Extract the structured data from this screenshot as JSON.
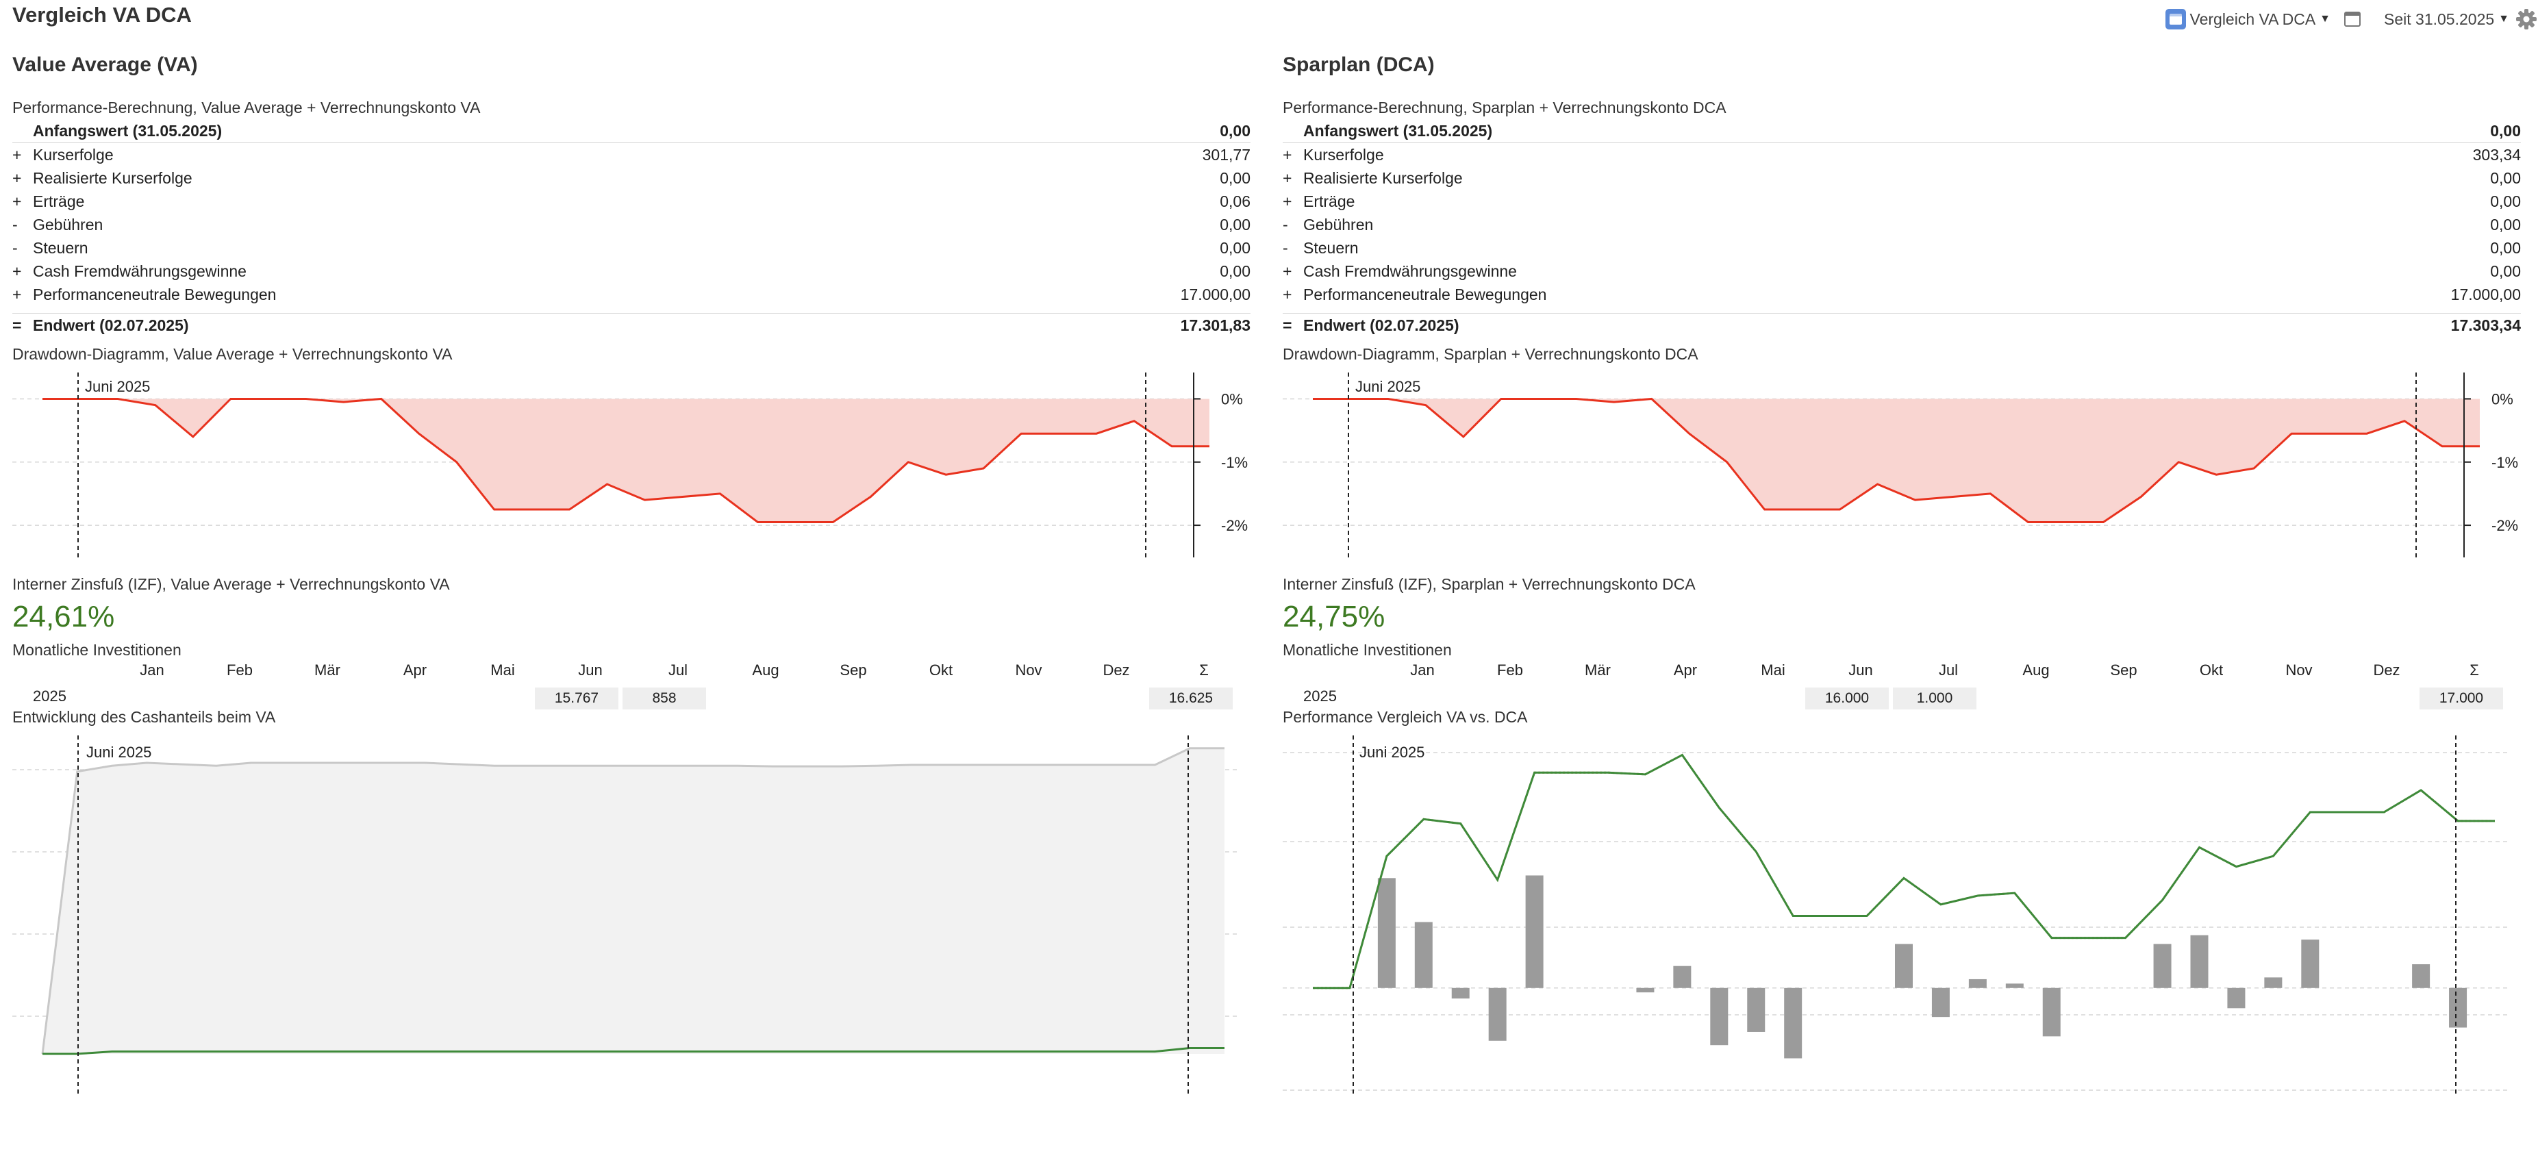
{
  "page_title": "Vergleich VA DCA",
  "toolbar": {
    "view_label": "Vergleich VA DCA",
    "period_label": "Seit 31.05.2025",
    "icons": [
      "calendar-icon",
      "window-icon",
      "gear-icon"
    ]
  },
  "colors": {
    "drawdown_line": "#e8321e",
    "drawdown_fill": "#f9d5d1",
    "irr_green": "#3d7a22",
    "perf_line": "#3e8a3a",
    "bar_gray": "#9b9b9b",
    "cash_gray": "#c8c8c8"
  },
  "left": {
    "title": "Value Average (VA)",
    "perf_caption": "Performance-Berechnung, Value Average + Verrechnungskonto VA",
    "start": {
      "label": "Anfangswert (31.05.2025)",
      "value": "0,00"
    },
    "rows": [
      {
        "sign": "+",
        "label": "Kurserfolge",
        "value": "301,77"
      },
      {
        "sign": "+",
        "label": "Realisierte Kurserfolge",
        "value": "0,00"
      },
      {
        "sign": "+",
        "label": "Erträge",
        "value": "0,06"
      },
      {
        "sign": "-",
        "label": "Gebühren",
        "value": "0,00"
      },
      {
        "sign": "-",
        "label": "Steuern",
        "value": "0,00"
      },
      {
        "sign": "+",
        "label": "Cash Fremdwährungsgewinne",
        "value": "0,00"
      },
      {
        "sign": "+",
        "label": "Performanceneutrale Bewegungen",
        "value": "17.000,00"
      }
    ],
    "end": {
      "sign": "=",
      "label": "Endwert (02.07.2025)",
      "value": "17.301,83"
    },
    "drawdown_caption": "Drawdown-Diagramm, Value Average + Verrechnungskonto VA",
    "irr_caption": "Interner Zinsfuß (IZF), Value Average + Verrechnungskonto VA",
    "irr_value": "24,61%",
    "monthly_caption": "Monatliche Investitionen",
    "year": "2025",
    "monthly": {
      "Jun": "15.767",
      "Jul": "858",
      "sum": "16.625"
    },
    "bottom_caption": "Entwicklung des Cashanteils beim VA"
  },
  "right": {
    "title": "Sparplan (DCA)",
    "perf_caption": "Performance-Berechnung, Sparplan + Verrechnungskonto DCA",
    "start": {
      "label": "Anfangswert (31.05.2025)",
      "value": "0,00"
    },
    "rows": [
      {
        "sign": "+",
        "label": "Kurserfolge",
        "value": "303,34"
      },
      {
        "sign": "+",
        "label": "Realisierte Kurserfolge",
        "value": "0,00"
      },
      {
        "sign": "+",
        "label": "Erträge",
        "value": "0,00"
      },
      {
        "sign": "-",
        "label": "Gebühren",
        "value": "0,00"
      },
      {
        "sign": "-",
        "label": "Steuern",
        "value": "0,00"
      },
      {
        "sign": "+",
        "label": "Cash Fremdwährungsgewinne",
        "value": "0,00"
      },
      {
        "sign": "+",
        "label": "Performanceneutrale Bewegungen",
        "value": "17.000,00"
      }
    ],
    "end": {
      "sign": "=",
      "label": "Endwert (02.07.2025)",
      "value": "17.303,34"
    },
    "drawdown_caption": "Drawdown-Diagramm, Sparplan + Verrechnungskonto DCA",
    "irr_caption": "Interner Zinsfuß (IZF), Sparplan + Verrechnungskonto DCA",
    "irr_value": "24,75%",
    "monthly_caption": "Monatliche Investitionen",
    "year": "2025",
    "monthly": {
      "Jun": "16.000",
      "Jul": "1.000",
      "sum": "17.000"
    },
    "bottom_caption": "Performance Vergleich VA vs. DCA"
  },
  "months": [
    "Jan",
    "Feb",
    "Mär",
    "Apr",
    "Mai",
    "Jun",
    "Jul",
    "Aug",
    "Sep",
    "Okt",
    "Nov",
    "Dez",
    "Σ"
  ],
  "chart_data": [
    {
      "type": "area",
      "panel": "left",
      "title": "Drawdown-Diagramm, Value Average + Verrechnungskonto VA",
      "marker_label": "Juni 2025",
      "y_ticks": [
        "0%",
        "-1%",
        "-2%"
      ],
      "ylim": [
        -2.4,
        0.2
      ],
      "values": [
        0,
        0,
        0,
        -0.1,
        -0.6,
        0,
        0,
        0,
        -0.05,
        0,
        -0.55,
        -1.0,
        -1.75,
        -1.75,
        -1.75,
        -1.35,
        -1.6,
        -1.55,
        -1.5,
        -1.95,
        -1.95,
        -1.95,
        -1.55,
        -1.0,
        -1.2,
        -1.1,
        -0.55,
        -0.55,
        -0.55,
        -0.35,
        -0.75,
        -0.75
      ]
    },
    {
      "type": "area",
      "panel": "right",
      "title": "Drawdown-Diagramm, Sparplan + Verrechnungskonto DCA",
      "marker_label": "Juni 2025",
      "y_ticks": [
        "0%",
        "-1%",
        "-2%"
      ],
      "ylim": [
        -2.4,
        0.2
      ],
      "values": [
        0,
        0,
        0,
        -0.1,
        -0.6,
        0,
        0,
        0,
        -0.05,
        0,
        -0.55,
        -1.0,
        -1.75,
        -1.75,
        -1.75,
        -1.35,
        -1.6,
        -1.55,
        -1.5,
        -1.95,
        -1.95,
        -1.95,
        -1.55,
        -1.0,
        -1.2,
        -1.1,
        -0.55,
        -0.55,
        -0.55,
        -0.35,
        -0.75,
        -0.75
      ]
    },
    {
      "type": "area",
      "panel": "left",
      "title": "Entwicklung des Cashanteils beim VA",
      "marker_label": "Juni 2025",
      "ylim": [
        0,
        100
      ],
      "series": [
        {
          "values": [
            0,
            97,
            99,
            100,
            99.5,
            99,
            100,
            100,
            100,
            100,
            100,
            100,
            99.5,
            99,
            99,
            99,
            99,
            99,
            99,
            99,
            99,
            98.8,
            98.8,
            98.8,
            99,
            99.3,
            99.3,
            99.3,
            99.3,
            99.3,
            99.3,
            99.3,
            99.3,
            105,
            105
          ]
        },
        {
          "values": [
            0,
            0,
            0.8,
            0.8,
            0.8,
            0.8,
            0.8,
            0.8,
            0.8,
            0.8,
            0.8,
            0.8,
            0.8,
            0.8,
            0.8,
            0.8,
            0.8,
            0.8,
            0.8,
            0.8,
            0.8,
            0.8,
            0.8,
            0.8,
            0.8,
            0.8,
            0.8,
            0.8,
            0.8,
            0.8,
            0.8,
            0.8,
            0.8,
            2.0,
            2.0
          ]
        }
      ]
    },
    {
      "type": "bar",
      "panel": "right",
      "title": "Performance Vergleich VA vs. DCA",
      "marker_label": "Juni 2025",
      "ylim": [
        -1.1,
        2.6
      ],
      "series": [
        {
          "type": "line",
          "values": [
            0,
            0,
            1.5,
            1.92,
            1.87,
            1.23,
            2.45,
            2.45,
            2.45,
            2.43,
            2.65,
            2.05,
            1.55,
            0.82,
            0.82,
            0.82,
            1.25,
            0.95,
            1.05,
            1.08,
            0.57,
            0.57,
            0.57,
            1.0,
            1.6,
            1.38,
            1.5,
            2.0,
            2.0,
            2.0,
            2.25,
            1.9,
            1.9
          ]
        },
        {
          "type": "bar",
          "values": [
            0,
            0,
            1.25,
            0.75,
            -0.12,
            -0.6,
            1.28,
            0,
            0,
            -0.05,
            0.25,
            -0.65,
            -0.5,
            -0.8,
            0,
            0,
            0.5,
            -0.33,
            0.1,
            0.05,
            -0.55,
            0,
            0,
            0.5,
            0.6,
            -0.23,
            0.12,
            0.55,
            0,
            0,
            0.27,
            -0.45,
            0
          ]
        }
      ]
    }
  ]
}
